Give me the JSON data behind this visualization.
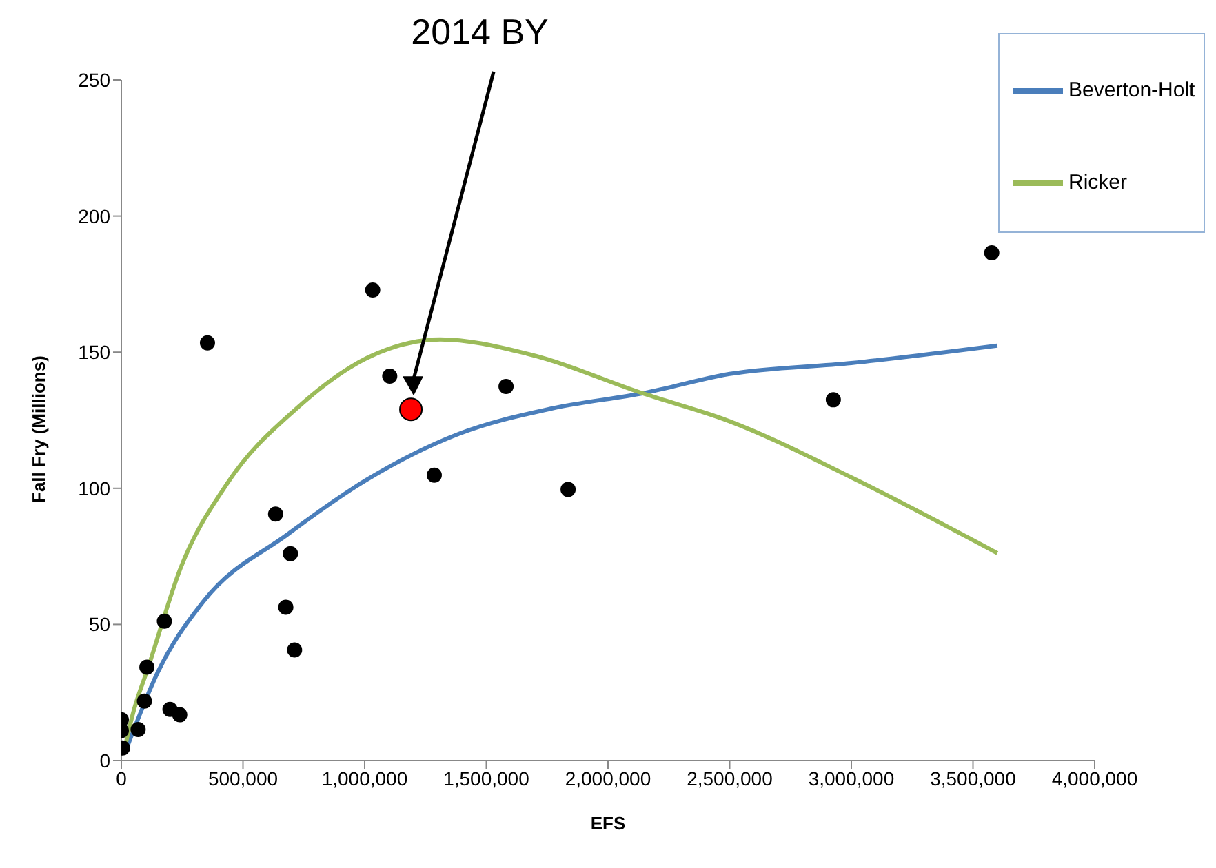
{
  "chart_data": {
    "type": "scatter",
    "xlabel": "EFS",
    "ylabel": "Fall Fry (Millions)",
    "xlim": [
      0,
      4000000
    ],
    "xticks": [
      0,
      {
        "value": 500000,
        "label": "500,000"
      },
      {
        "value": 1000000,
        "label": "1,000,000"
      },
      {
        "value": 1500000,
        "label": "1,500,000"
      },
      {
        "value": 2000000,
        "label": "2,000,000"
      },
      {
        "value": 2500000,
        "label": "2,500,000"
      },
      {
        "value": 3000000,
        "label": "3,000,000"
      },
      {
        "value": 3500000,
        "label": "3,500,000"
      },
      {
        "value": 4000000,
        "label": "4,000,000"
      }
    ],
    "ylim": [
      0,
      250
    ],
    "yticks": [
      0,
      50,
      100,
      150,
      200,
      250
    ],
    "grid": false,
    "legend": "top right",
    "annotations": [
      "2014 BY"
    ],
    "series": [
      {
        "color": "#000000",
        "marker": "circle",
        "x": [
          5000,
          0,
          0,
          69000,
          95000,
          105000,
          177000,
          200000,
          240000,
          354000,
          1033000,
          1103000,
          1581000,
          1286000,
          1836000,
          634000,
          695000,
          676000,
          712000,
          2926000,
          3577000
        ],
        "values": [
          4.6,
          15,
          11,
          11.4,
          21.8,
          34.3,
          51.2,
          18.8,
          16.8,
          153.4,
          172.8,
          141.2,
          137.4,
          104.8,
          99.6,
          90.5,
          76,
          56.3,
          40.6,
          132.5,
          186.5
        ]
      },
      {
        "color": "#ff0000",
        "marker": "circle",
        "x": [
          1190000
        ],
        "values": [
          129
        ]
      },
      {
        "type": "line",
        "marker": "none",
        "name": "Beverton-Holt",
        "color": "#4a7ebb",
        "x": [
          20000,
          149000,
          339000,
          682000,
          1006000,
          1387000,
          1768000,
          2149000,
          2500000,
          3000000,
          3600000
        ],
        "values": [
          4,
          32.3,
          58.6,
          83,
          103,
          120,
          129.3,
          135,
          142,
          146,
          152.4
        ]
      },
      {
        "type": "line",
        "marker": "none",
        "name": "Ricker",
        "color": "#9bbb59",
        "x": [
          10000,
          50000,
          109000,
          244000,
          434000,
          720000,
          1006000,
          1310000,
          1673000,
          2149000,
          2500000,
          3000000,
          3600000
        ],
        "values": [
          3,
          18,
          33.8,
          70.8,
          101.6,
          129.3,
          147.7,
          154.7,
          149.3,
          134.7,
          124.6,
          104,
          76.2
        ]
      }
    ]
  }
}
